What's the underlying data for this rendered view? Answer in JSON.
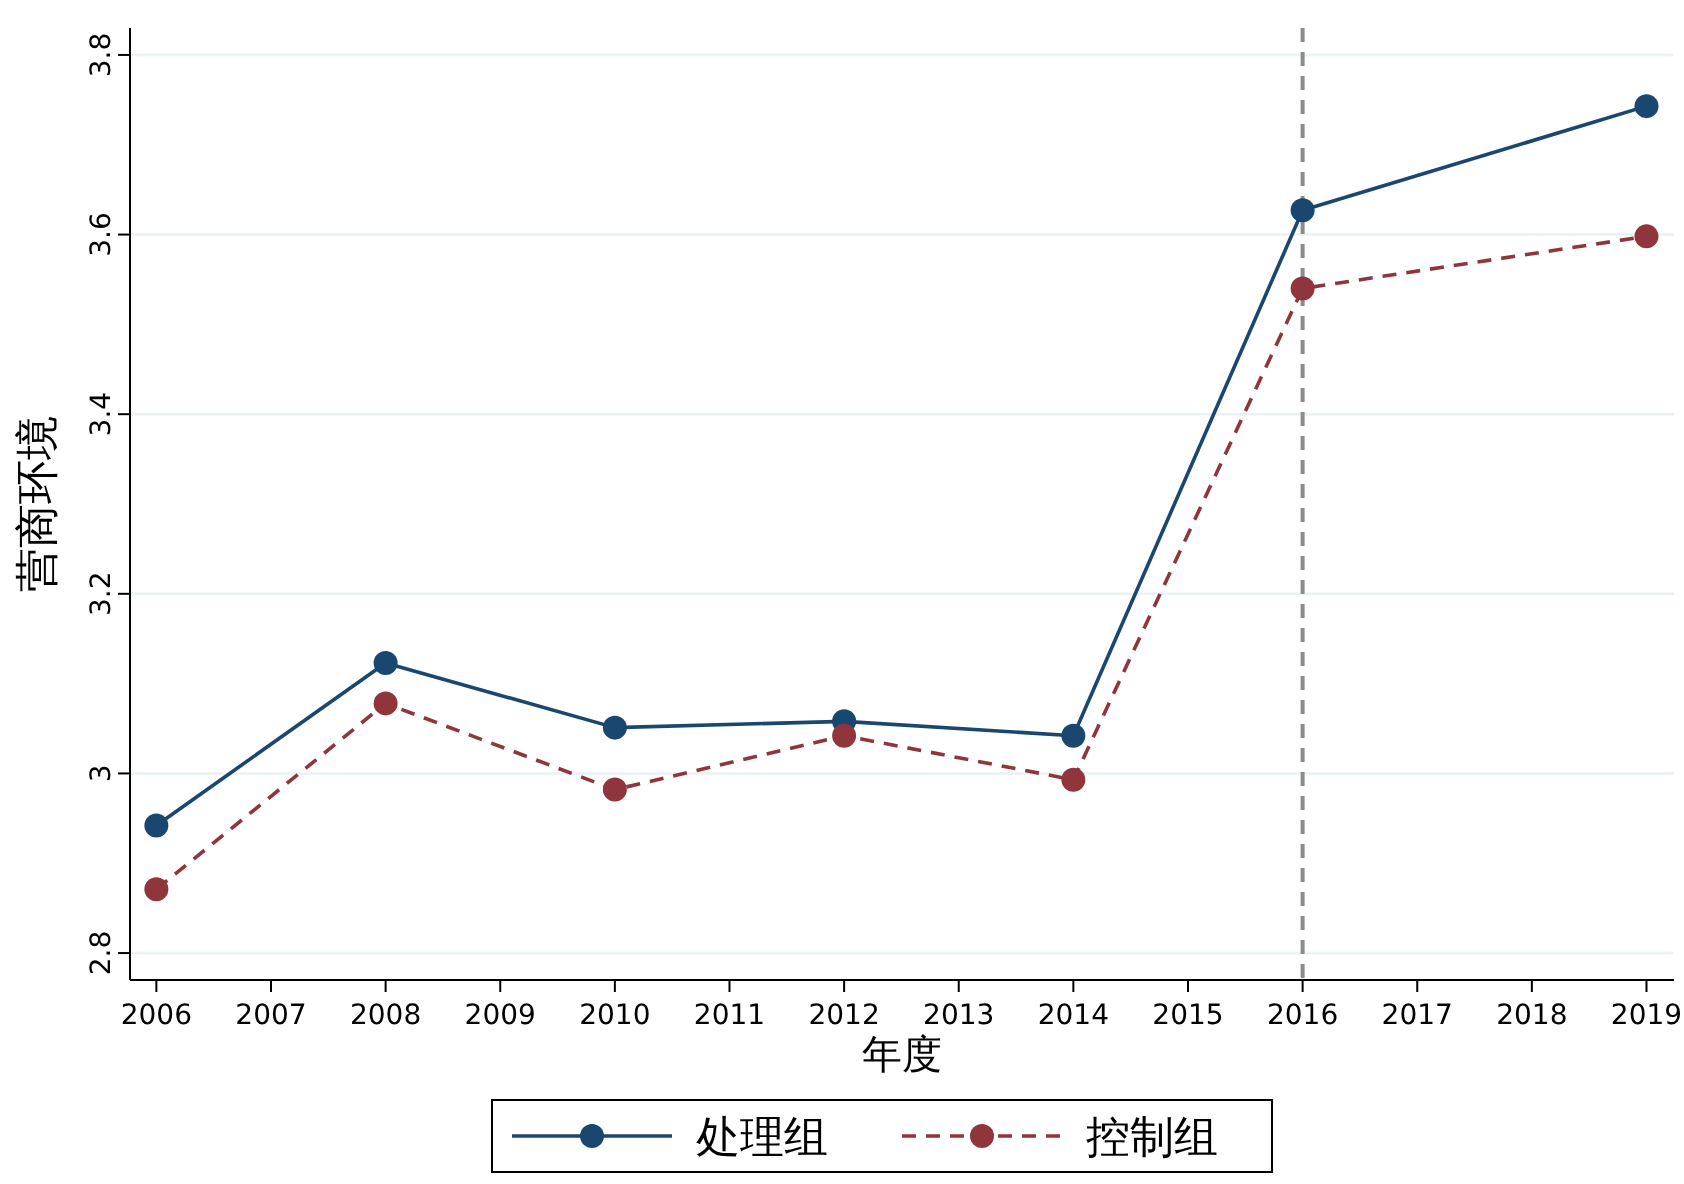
{
  "chart_data": {
    "type": "line",
    "xlabel": "年度",
    "ylabel": "营商环境",
    "x": [
      2006,
      2008,
      2010,
      2012,
      2014,
      2016,
      2019
    ],
    "series": [
      {
        "name": "处理组",
        "color": "#1a476f",
        "values": [
          2.942,
          3.123,
          3.051,
          3.058,
          3.042,
          3.627,
          3.743
        ],
        "line_style": "solid"
      },
      {
        "name": "控制组",
        "color": "#90353b",
        "values": [
          2.871,
          3.078,
          2.982,
          3.042,
          2.993,
          3.54,
          3.598
        ],
        "line_style": "dashed"
      }
    ],
    "xlim": [
      2005.77,
      2019.24
    ],
    "xticks": [
      2006,
      2007,
      2008,
      2009,
      2010,
      2011,
      2012,
      2013,
      2014,
      2015,
      2016,
      2017,
      2018,
      2019
    ],
    "ylim": [
      2.77,
      3.83
    ],
    "yticks": [
      {
        "value": 2.8,
        "label": "2.8"
      },
      3,
      {
        "value": 3.2,
        "label": "3.2"
      },
      {
        "value": 3.4,
        "label": "3.4"
      },
      {
        "value": 3.6,
        "label": "3.6"
      },
      {
        "value": 3.8,
        "label": "3.8"
      }
    ],
    "ref_lines": [
      {
        "axis": "x",
        "value": 2016,
        "color": "#8c8c8c",
        "line_style": "dashed"
      }
    ],
    "grid": "y",
    "marker": "circle",
    "legend": "bottom"
  }
}
